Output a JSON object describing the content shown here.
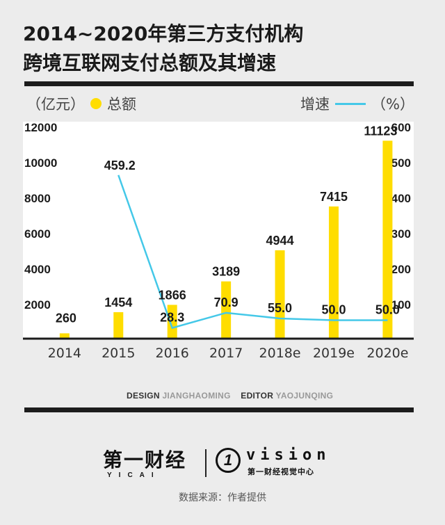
{
  "title_line1": "2014~2020年第三方支付机构",
  "title_line2": "跨境互联网支付总额及其增速",
  "legend": {
    "left_unit_open": "（亿元）",
    "left_series": "总额",
    "right_series": "增速",
    "right_unit": "（%）"
  },
  "colors": {
    "bar": "#ffdd00",
    "line": "#44c8e8",
    "rule": "#1c1c1c"
  },
  "chart_data": {
    "type": "bar",
    "categories": [
      "2014",
      "2015",
      "2016",
      "2017",
      "2018e",
      "2019e",
      "2020e"
    ],
    "series": [
      {
        "name": "总额",
        "type": "bar",
        "axis": "left",
        "values": [
          260,
          1454,
          1866,
          3189,
          4944,
          7415,
          11123
        ],
        "labels": [
          "260",
          "1454",
          "1866",
          "3189",
          "4944",
          "7415",
          "11123"
        ]
      },
      {
        "name": "增速",
        "type": "line",
        "axis": "right",
        "values": [
          null,
          459.2,
          28.3,
          70.9,
          55.0,
          50.0,
          50.0
        ],
        "labels": [
          "",
          "459.2",
          "28.3",
          "70.9",
          "55.0",
          "50.0",
          "50.0"
        ]
      }
    ],
    "left_axis": {
      "ylim": [
        0,
        12000
      ],
      "ticks": [
        "2000",
        "4000",
        "6000",
        "8000",
        "10000",
        "12000"
      ]
    },
    "right_axis": {
      "ylim": [
        0,
        600
      ],
      "ticks": [
        "100",
        "200",
        "300",
        "400",
        "500",
        "600"
      ]
    }
  },
  "credits": {
    "design_label": "DESIGN",
    "design_name": "JIANGHAOMING",
    "editor_label": "EDITOR",
    "editor_name": "YAOJUNQING"
  },
  "logo_yicai": {
    "cn": "第一财经",
    "en": "YICAI"
  },
  "logo_vision": {
    "mark": "1",
    "word": "vision",
    "sub": "第一财经视觉中心"
  },
  "source": "数据来源：作者提供"
}
